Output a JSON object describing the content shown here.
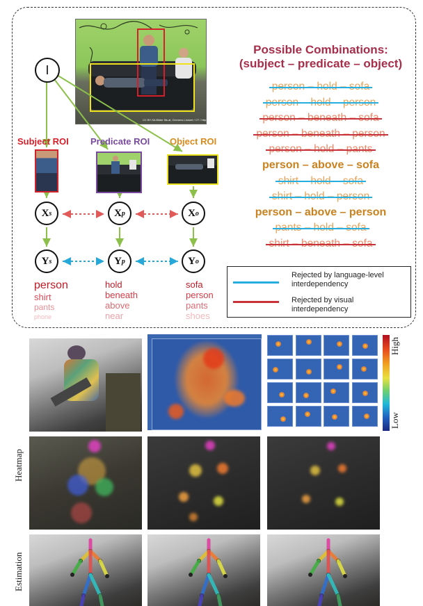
{
  "graph": {
    "image_node": "I",
    "roi_labels": {
      "subject": "Subject ROI",
      "predicate": "Predicate ROI",
      "object": "Object ROI"
    },
    "x_nodes": {
      "main": "X",
      "s": "s",
      "p": "p",
      "o": "o"
    },
    "y_nodes": {
      "main": "Y",
      "s": "s",
      "p": "p",
      "o": "o"
    },
    "photo_caption": "CC BY-SA Bilder fits.at, Clemens Lückert / CT / http://fit.at",
    "subject_words": [
      "person",
      "shirt",
      "pants",
      "phone"
    ],
    "predicate_words": [
      "hold",
      "beneath",
      "above",
      "near"
    ],
    "object_words": [
      "sofa",
      "person",
      "pants",
      "shoes"
    ]
  },
  "combinations": {
    "title_line1": "Possible Combinations:",
    "title_line2": "(subject  – predicate – object)",
    "items": [
      {
        "text": "person – hold – sofa",
        "status": "lang"
      },
      {
        "text": "person – hold – person",
        "status": "lang"
      },
      {
        "text": "person – beneath – sofa",
        "status": "vis"
      },
      {
        "text": "person – beneath – person",
        "status": "vis"
      },
      {
        "text": "person – hold – pants",
        "status": "vis"
      },
      {
        "text": "person – above – sofa",
        "status": "ok"
      },
      {
        "text": "shirt – hold – sofa",
        "status": "lang"
      },
      {
        "text": "shirt – hold – person",
        "status": "lang"
      },
      {
        "text": "person – above – person",
        "status": "ok"
      },
      {
        "text": "pants – hold – sofa",
        "status": "lang"
      },
      {
        "text": "shirt – beneath – sofa",
        "status": "vis"
      }
    ]
  },
  "legend": {
    "language": "Rejected by language-level interdependency",
    "visual": "Rejected by visual interdependency",
    "language_color": "#27aee0",
    "visual_color": "#c8303a"
  },
  "pose": {
    "colorbar_high": "High",
    "colorbar_low": "Low",
    "row_label_heatmap": "Heatmap",
    "row_label_estimation": "Estimation"
  }
}
